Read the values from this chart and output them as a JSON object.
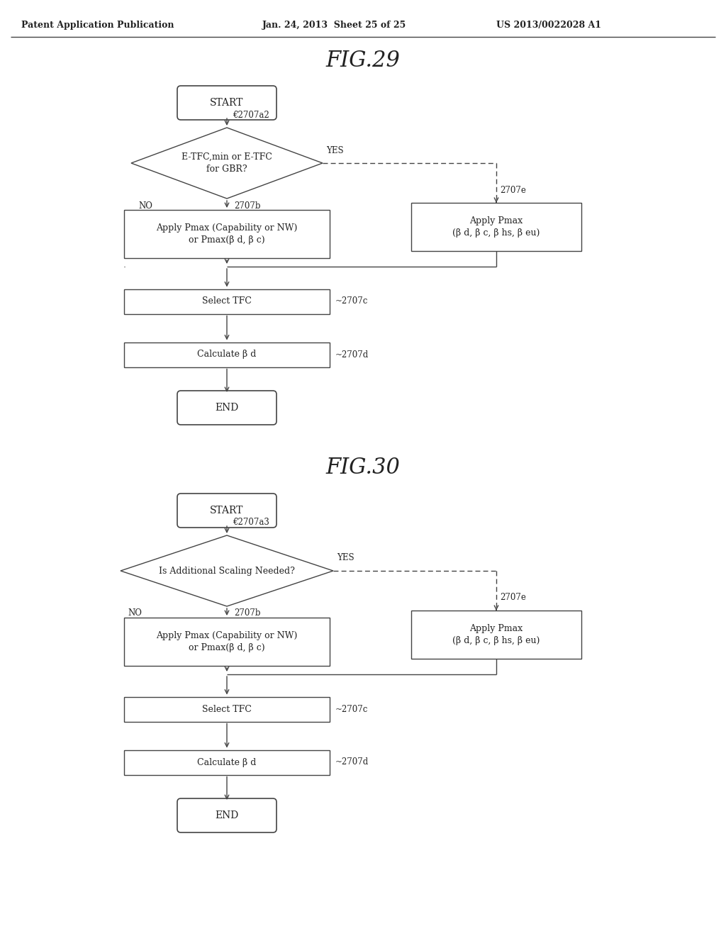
{
  "header_left": "Patent Application Publication",
  "header_mid": "Jan. 24, 2013  Sheet 25 of 25",
  "header_right": "US 2013/0022028 A1",
  "fig29_title": "FIG.29",
  "fig30_title": "FIG.30",
  "bg_color": "#ffffff",
  "line_color": "#444444",
  "text_color": "#222222",
  "fig29": {
    "start_label": "START",
    "diamond_label": "E-TFC,min or E-TFC\nfor GBR?",
    "diamond_ref": "€2707a2",
    "yes_label": "YES",
    "no_label": "NO",
    "box_left_ref": "2707b",
    "box_left_label": "Apply Pmax (Capability or NW)\nor Pmax(β d, β c)",
    "box_right_ref": "2707e",
    "box_right_label": "Apply Pmax\n(β d, β c, β hs, β eu)",
    "select_tfc_label": "Select TFC",
    "select_tfc_ref": "~2707c",
    "calc_beta_label": "Calculate β d",
    "calc_beta_ref": "~2707d",
    "end_label": "END"
  },
  "fig30": {
    "start_label": "START",
    "diamond_label": "Is Additional Scaling Needed?",
    "diamond_ref": "€2707a3",
    "yes_label": "YES",
    "no_label": "NO",
    "box_left_ref": "2707b",
    "box_left_label": "Apply Pmax (Capability or NW)\nor Pmax(β d, β c)",
    "box_right_ref": "2707e",
    "box_right_label": "Apply Pmax\n(β d, β c, β hs, β eu)",
    "select_tfc_label": "Select TFC",
    "select_tfc_ref": "~2707c",
    "calc_beta_label": "Calculate β d",
    "calc_beta_ref": "~2707d",
    "end_label": "END"
  }
}
